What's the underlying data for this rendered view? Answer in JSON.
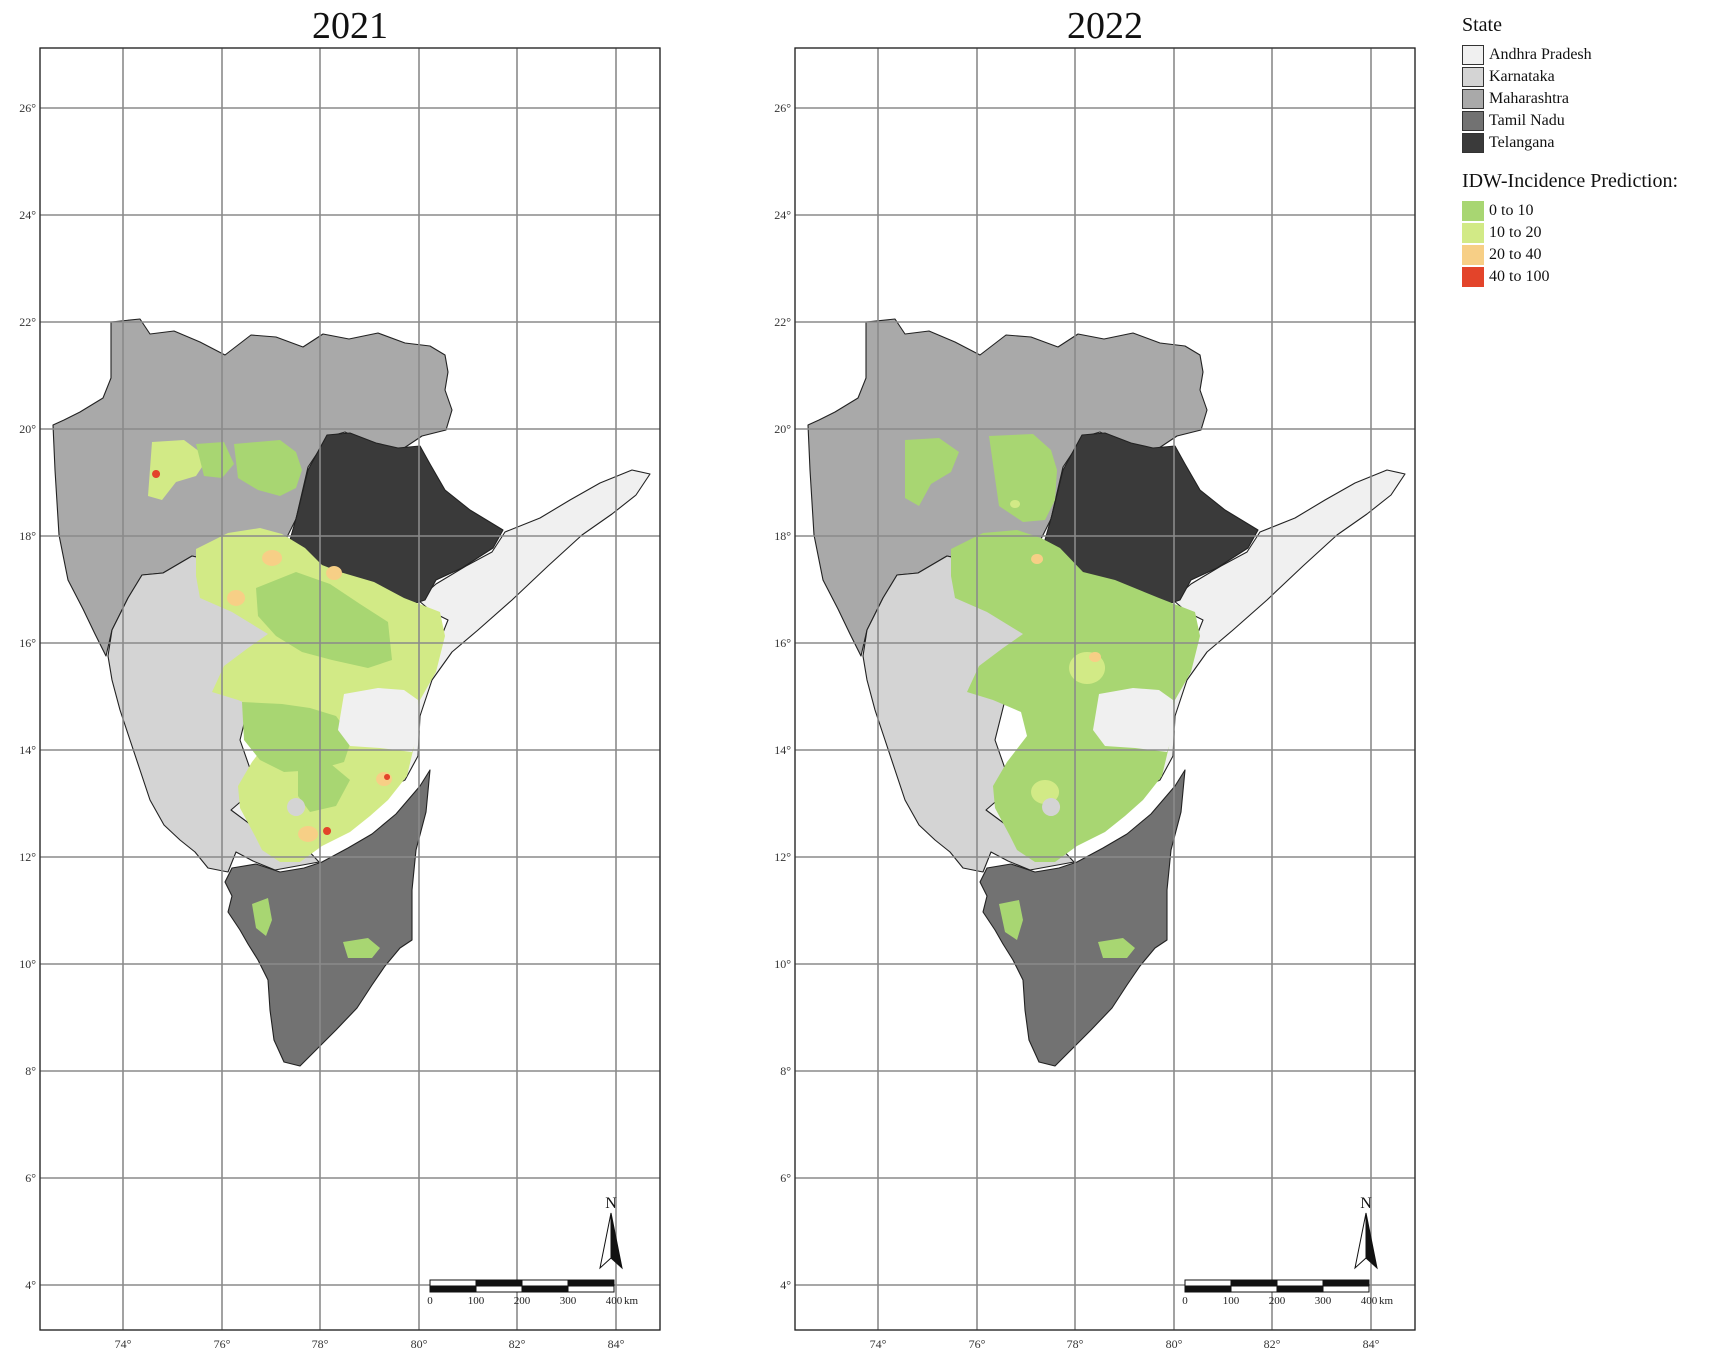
{
  "maps": [
    {
      "year": "2021",
      "lat_labels": [
        "4°",
        "6°",
        "8°",
        "10°",
        "12°",
        "14°",
        "16°",
        "18°",
        "20°",
        "22°",
        "24°",
        "26°"
      ],
      "lon_labels": [
        "74°",
        "76°",
        "78°",
        "80°",
        "82°",
        "84°"
      ],
      "north_label": "N",
      "scale_labels": [
        "0",
        "100",
        "200",
        "300",
        "400",
        "km"
      ]
    },
    {
      "year": "2022",
      "lat_labels": [
        "4°",
        "6°",
        "8°",
        "10°",
        "12°",
        "14°",
        "16°",
        "18°",
        "20°",
        "22°",
        "24°",
        "26°"
      ],
      "lon_labels": [
        "74°",
        "76°",
        "78°",
        "80°",
        "82°",
        "84°"
      ],
      "north_label": "N",
      "scale_labels": [
        "0",
        "100",
        "200",
        "300",
        "400",
        "km"
      ]
    }
  ],
  "legend": {
    "state_title": "State",
    "states": [
      {
        "label": "Andhra Pradesh",
        "color": "#f0f0f0"
      },
      {
        "label": "Karnataka",
        "color": "#d4d4d4"
      },
      {
        "label": "Maharashtra",
        "color": "#a9a9a9"
      },
      {
        "label": "Tamil Nadu",
        "color": "#727272"
      },
      {
        "label": "Telangana",
        "color": "#3a3a3a"
      }
    ],
    "idw_title": "IDW-Incidence Prediction:",
    "idw_classes": [
      {
        "label": "0 to 10",
        "color": "#a8d672"
      },
      {
        "label": "10 to 20",
        "color": "#d2ea86"
      },
      {
        "label": "20 to 40",
        "color": "#f7cf86"
      },
      {
        "label": "40 to 100",
        "color": "#e3442a"
      }
    ]
  }
}
